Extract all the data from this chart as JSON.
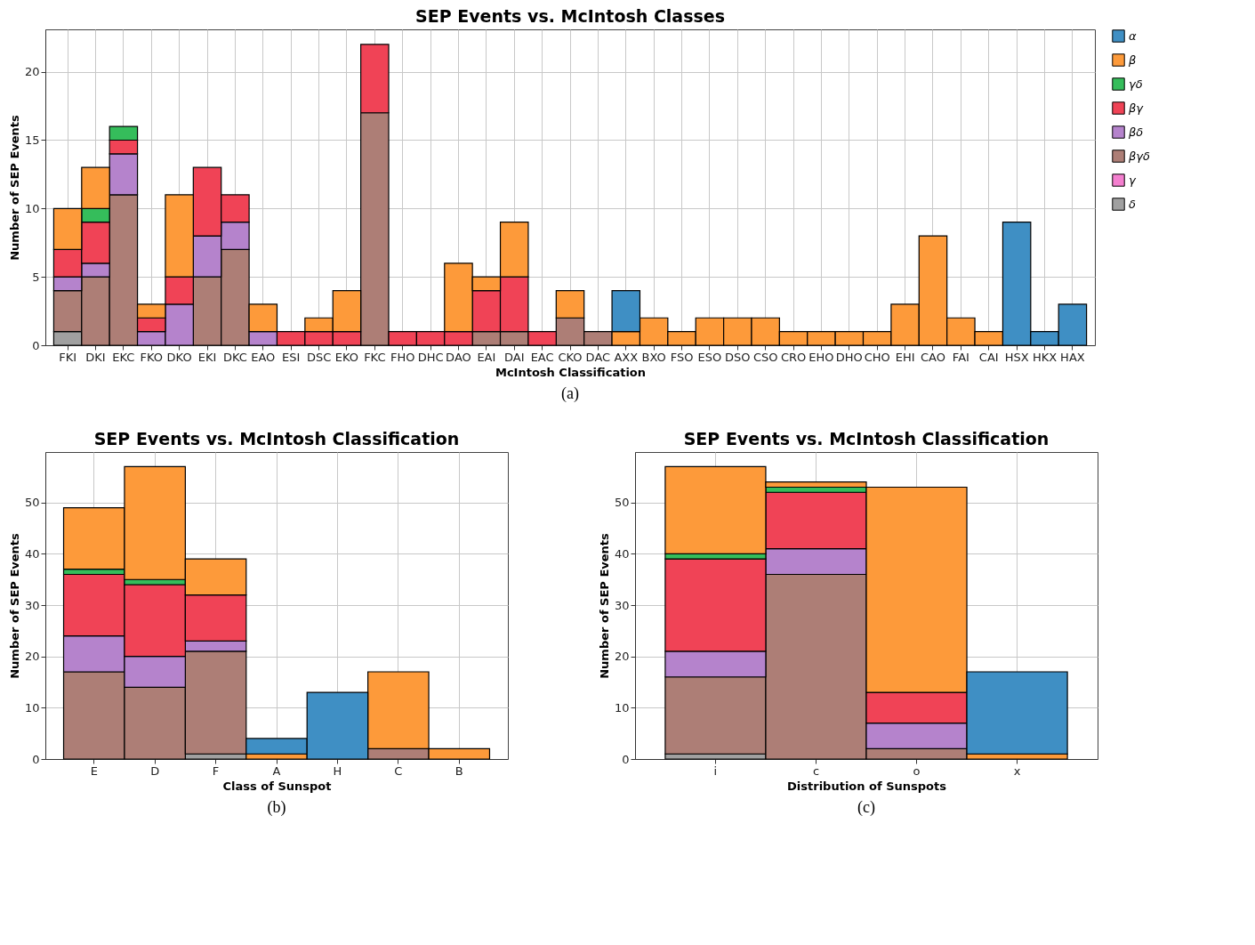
{
  "chart_data": [
    {
      "type": "bar",
      "stacked": true,
      "title": "SEP Events vs. McIntosh Classes",
      "xlabel": "McIntosh Classification",
      "ylabel": "Number of SEP Events",
      "annotations": [
        "(a)"
      ],
      "grid": true,
      "legend": "top right",
      "ylim": [
        0,
        23.1
      ],
      "yticks": [
        0,
        5,
        10,
        15,
        20
      ],
      "categories": [
        "FKI",
        "DKI",
        "EKC",
        "FKO",
        "DKO",
        "EKI",
        "DKC",
        "EAO",
        "ESI",
        "DSC",
        "EKO",
        "FKC",
        "FHO",
        "DHC",
        "DAO",
        "EAI",
        "DAI",
        "EAC",
        "CKO",
        "DAC",
        "AXX",
        "BXO",
        "FSO",
        "ESO",
        "DSO",
        "CSO",
        "CRO",
        "EHO",
        "DHO",
        "CHO",
        "EHI",
        "CAO",
        "FAI",
        "CAI",
        "HSX",
        "HKX",
        "HAX"
      ],
      "series": [
        {
          "name": "δ",
          "color": "#a0a0a0",
          "values": [
            1,
            0,
            0,
            0,
            0,
            0,
            0,
            0,
            0,
            0,
            0,
            0,
            0,
            0,
            0,
            0,
            0,
            0,
            0,
            0,
            0,
            0,
            0,
            0,
            0,
            0,
            0,
            0,
            0,
            0,
            0,
            0,
            0,
            0,
            0,
            0,
            0
          ]
        },
        {
          "name": "γ",
          "color": "#f47fcf",
          "values": [
            0,
            0,
            0,
            0,
            0,
            0,
            0,
            0,
            0,
            0,
            0,
            0,
            0,
            0,
            0,
            0,
            0,
            0,
            0,
            0,
            0,
            0,
            0,
            0,
            0,
            0,
            0,
            0,
            0,
            0,
            0,
            0,
            0,
            0,
            0,
            0,
            0
          ]
        },
        {
          "name": "βγδ",
          "color": "#ad7e76",
          "values": [
            3,
            5,
            11,
            0,
            0,
            5,
            7,
            0,
            0,
            0,
            0,
            17,
            0,
            0,
            0,
            1,
            1,
            0,
            2,
            1,
            0,
            0,
            0,
            0,
            0,
            0,
            0,
            0,
            0,
            0,
            0,
            0,
            0,
            0,
            0,
            0,
            0
          ]
        },
        {
          "name": "βδ",
          "color": "#b583cc",
          "values": [
            1,
            1,
            3,
            1,
            3,
            3,
            2,
            1,
            0,
            0,
            0,
            0,
            0,
            0,
            0,
            0,
            0,
            0,
            0,
            0,
            0,
            0,
            0,
            0,
            0,
            0,
            0,
            0,
            0,
            0,
            0,
            0,
            0,
            0,
            0,
            0,
            0
          ]
        },
        {
          "name": "βγ",
          "color": "#f04356",
          "values": [
            2,
            3,
            1,
            1,
            2,
            5,
            2,
            0,
            1,
            1,
            1,
            5,
            1,
            1,
            1,
            3,
            4,
            1,
            0,
            0,
            0,
            0,
            0,
            0,
            0,
            0,
            0,
            0,
            0,
            0,
            0,
            0,
            0,
            0,
            0,
            0,
            0
          ]
        },
        {
          "name": "γδ",
          "color": "#35bd5b",
          "values": [
            0,
            1,
            1,
            0,
            0,
            0,
            0,
            0,
            0,
            0,
            0,
            0,
            0,
            0,
            0,
            0,
            0,
            0,
            0,
            0,
            0,
            0,
            0,
            0,
            0,
            0,
            0,
            0,
            0,
            0,
            0,
            0,
            0,
            0,
            0,
            0,
            0
          ]
        },
        {
          "name": "β",
          "color": "#fd9a3a",
          "values": [
            3,
            3,
            0,
            1,
            6,
            0,
            0,
            2,
            0,
            1,
            3,
            0,
            0,
            0,
            5,
            1,
            4,
            0,
            2,
            0,
            1,
            2,
            1,
            2,
            2,
            2,
            1,
            1,
            1,
            1,
            3,
            8,
            2,
            1,
            0,
            0,
            0
          ]
        },
        {
          "name": "α",
          "color": "#3f8fc4",
          "values": [
            0,
            0,
            0,
            0,
            0,
            0,
            0,
            0,
            0,
            0,
            0,
            0,
            0,
            0,
            0,
            0,
            0,
            0,
            0,
            0,
            3,
            0,
            0,
            0,
            0,
            0,
            0,
            0,
            0,
            0,
            0,
            0,
            0,
            0,
            9,
            1,
            3
          ]
        }
      ]
    },
    {
      "type": "bar",
      "stacked": true,
      "title": "SEP Events vs. McIntosh Classification",
      "xlabel": "Class of Sunspot",
      "ylabel": "Number of SEP Events",
      "annotations": [
        "(b)"
      ],
      "grid": true,
      "ylim": [
        0,
        59.85
      ],
      "yticks": [
        0,
        10,
        20,
        30,
        40,
        50
      ],
      "categories": [
        "E",
        "D",
        "F",
        "A",
        "H",
        "C",
        "B"
      ],
      "series": [
        {
          "color": "#a0a0a0",
          "values": [
            0,
            0,
            1,
            0,
            0,
            0,
            0
          ]
        },
        {
          "color": "#ad7e76",
          "values": [
            17,
            14,
            20,
            0,
            0,
            2,
            0
          ]
        },
        {
          "color": "#b583cc",
          "values": [
            7,
            6,
            2,
            0,
            0,
            0,
            0
          ]
        },
        {
          "color": "#f04356",
          "values": [
            12,
            14,
            9,
            0,
            0,
            0,
            0
          ]
        },
        {
          "color": "#35bd5b",
          "values": [
            1,
            1,
            0,
            0,
            0,
            0,
            0
          ]
        },
        {
          "color": "#fd9a3a",
          "values": [
            12,
            22,
            7,
            1,
            0,
            15,
            2
          ]
        },
        {
          "color": "#3f8fc4",
          "values": [
            0,
            0,
            0,
            3,
            13,
            0,
            0
          ]
        }
      ]
    },
    {
      "type": "bar",
      "stacked": true,
      "title": "SEP Events vs. McIntosh Classification",
      "xlabel": "Distribution of Sunspots",
      "ylabel": "Number of SEP Events",
      "annotations": [
        "(c)"
      ],
      "grid": true,
      "ylim": [
        0,
        59.85
      ],
      "yticks": [
        0,
        10,
        20,
        30,
        40,
        50
      ],
      "categories": [
        "i",
        "c",
        "o",
        "x"
      ],
      "series": [
        {
          "color": "#a0a0a0",
          "values": [
            1,
            0,
            0,
            0
          ]
        },
        {
          "color": "#ad7e76",
          "values": [
            15,
            36,
            2,
            0
          ]
        },
        {
          "color": "#b583cc",
          "values": [
            5,
            5,
            5,
            0
          ]
        },
        {
          "color": "#f04356",
          "values": [
            18,
            11,
            6,
            0
          ]
        },
        {
          "color": "#35bd5b",
          "values": [
            1,
            1,
            0,
            0
          ]
        },
        {
          "color": "#fd9a3a",
          "values": [
            17,
            1,
            40,
            1
          ]
        },
        {
          "color": "#3f8fc4",
          "values": [
            0,
            0,
            0,
            16
          ]
        }
      ]
    }
  ]
}
